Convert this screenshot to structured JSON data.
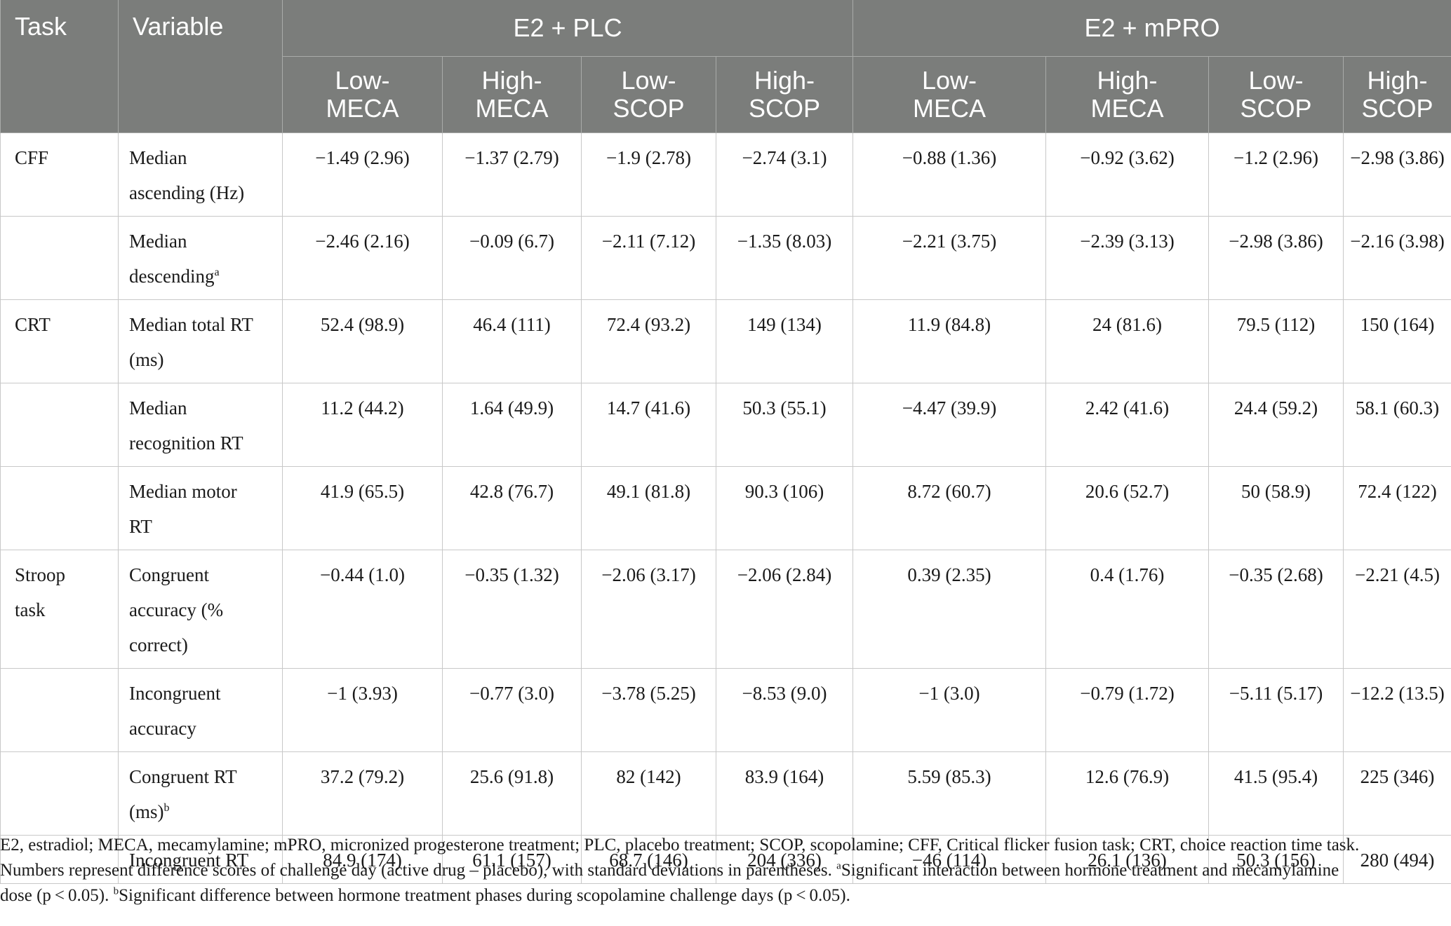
{
  "header": {
    "task": "Task",
    "variable": "Variable",
    "groups": [
      "E2 + PLC",
      "E2 + mPRO"
    ],
    "subcolumns": [
      [
        "Low-",
        "MECA"
      ],
      [
        "High-",
        "MECA"
      ],
      [
        "Low-",
        "SCOP"
      ],
      [
        "High-",
        "SCOP"
      ],
      [
        "Low-",
        "MECA"
      ],
      [
        "High-",
        "MECA"
      ],
      [
        "Low-",
        "SCOP"
      ],
      [
        "High-",
        "SCOP"
      ]
    ]
  },
  "rows": [
    {
      "task": [
        "CFF"
      ],
      "variable": [
        "Median",
        "ascending (Hz)"
      ],
      "sup": "",
      "values": [
        "−1.49 (2.96)",
        "−1.37 (2.79)",
        "−1.9 (2.78)",
        "−2.74 (3.1)",
        "−0.88 (1.36)",
        "−0.92 (3.62)",
        "−1.2 (2.96)",
        "−2.98 (3.86)"
      ]
    },
    {
      "task": [],
      "variable": [
        "Median",
        "descending"
      ],
      "sup": "a",
      "values": [
        "−2.46 (2.16)",
        "−0.09 (6.7)",
        "−2.11 (7.12)",
        "−1.35 (8.03)",
        "−2.21 (3.75)",
        "−2.39 (3.13)",
        "−2.98 (3.86)",
        "−2.16 (3.98)"
      ]
    },
    {
      "task": [
        "CRT"
      ],
      "variable": [
        "Median total RT",
        "(ms)"
      ],
      "sup": "",
      "values": [
        "52.4 (98.9)",
        "46.4 (111)",
        "72.4 (93.2)",
        "149 (134)",
        "11.9 (84.8)",
        "24 (81.6)",
        "79.5 (112)",
        "150 (164)"
      ]
    },
    {
      "task": [],
      "variable": [
        "Median",
        "recognition RT"
      ],
      "sup": "",
      "values": [
        "11.2 (44.2)",
        "1.64 (49.9)",
        "14.7 (41.6)",
        "50.3 (55.1)",
        "−4.47 (39.9)",
        "2.42 (41.6)",
        "24.4 (59.2)",
        "58.1 (60.3)"
      ]
    },
    {
      "task": [],
      "variable": [
        "Median motor",
        "RT"
      ],
      "sup": "",
      "values": [
        "41.9 (65.5)",
        "42.8 (76.7)",
        "49.1 (81.8)",
        "90.3 (106)",
        "8.72 (60.7)",
        "20.6 (52.7)",
        "50 (58.9)",
        "72.4 (122)"
      ]
    },
    {
      "task": [
        "Stroop",
        "task"
      ],
      "variable": [
        "Congruent",
        "accuracy (%",
        "correct)"
      ],
      "sup": "",
      "values": [
        "−0.44 (1.0)",
        "−0.35 (1.32)",
        "−2.06 (3.17)",
        "−2.06 (2.84)",
        "0.39 (2.35)",
        "0.4 (1.76)",
        "−0.35 (2.68)",
        "−2.21 (4.5)"
      ]
    },
    {
      "task": [],
      "variable": [
        "Incongruent",
        "accuracy"
      ],
      "sup": "",
      "values": [
        "−1 (3.93)",
        "−0.77 (3.0)",
        "−3.78 (5.25)",
        "−8.53 (9.0)",
        "−1 (3.0)",
        "−0.79 (1.72)",
        "−5.11 (5.17)",
        "−12.2 (13.5)"
      ]
    },
    {
      "task": [],
      "variable": [
        "Congruent RT",
        "(ms)"
      ],
      "sup": "b",
      "values": [
        "37.2 (79.2)",
        "25.6 (91.8)",
        "82 (142)",
        "83.9 (164)",
        "5.59 (85.3)",
        "12.6 (76.9)",
        "41.5 (95.4)",
        "225 (346)"
      ]
    },
    {
      "task": [],
      "variable": [
        "Incongruent RT"
      ],
      "sup": "",
      "values": [
        "84.9 (174)",
        "61.1 (157)",
        "68.7 (146)",
        "204 (336)",
        "−46 (114)",
        "26.1 (136)",
        "50.3 (156)",
        "280 (494)"
      ]
    }
  ],
  "footnote": {
    "line1": "E2, estradiol; MECA, mecamylamine; mPRO, micronized progesterone treatment; PLC, placebo treatment; SCOP, scopolamine; CFF, Critical flicker fusion task; CRT, choice reaction time task.",
    "line2": "Numbers represent difference scores of challenge day (active drug – placebo), with standard deviations in parentheses. ",
    "sup_a": "a",
    "line2b": "Significant interaction between hormone treatment and mecamylamine",
    "line3": "dose (p < 0.05). ",
    "sup_b": "b",
    "line3b": "Significant difference between hormone treatment phases during scopolamine challenge days (p < 0.05)."
  }
}
